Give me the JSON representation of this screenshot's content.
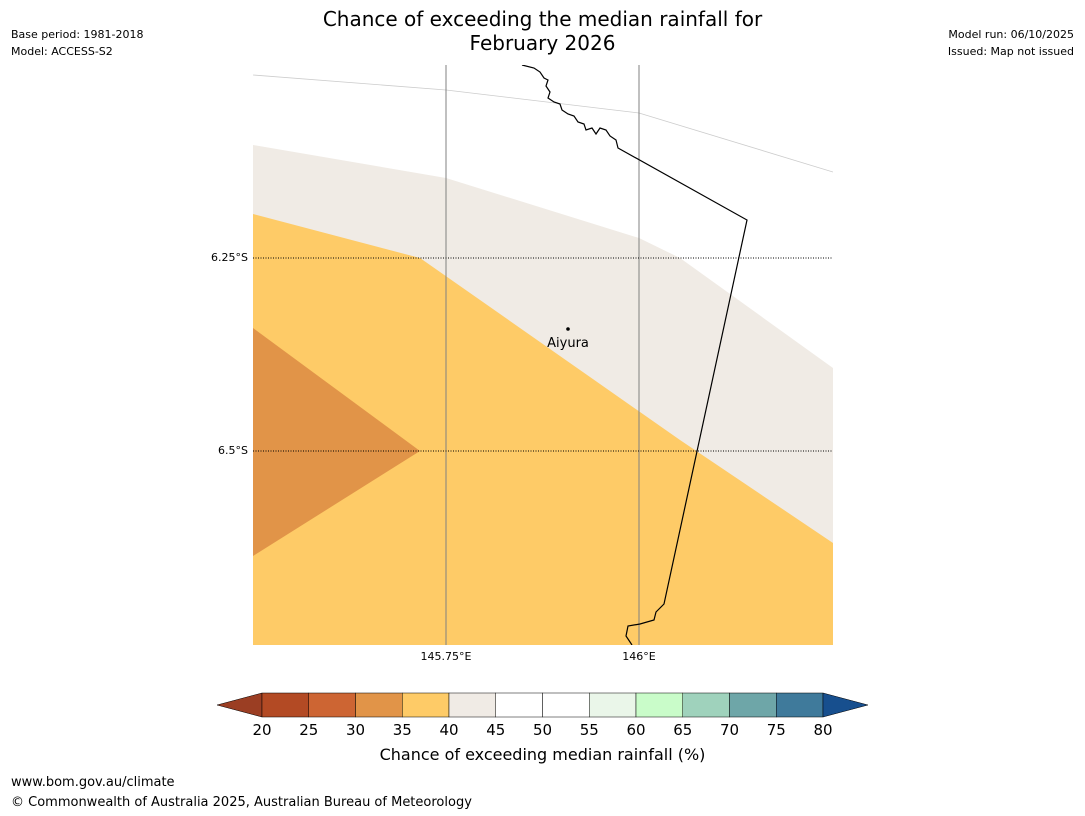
{
  "title": {
    "line1": "Chance of exceeding the median rainfall for",
    "line2": "February 2026"
  },
  "meta_left": {
    "base_period": "Base period: 1981-2018",
    "model": "Model: ACCESS-S2"
  },
  "meta_right": {
    "model_run": "Model run: 06/10/2025",
    "issued": "Issued: Map not issued"
  },
  "map": {
    "lat_labels": [
      "6.25°S",
      "6.5°S"
    ],
    "lon_labels": [
      "145.75°E",
      "146°E"
    ],
    "place": {
      "name": "Aiyura"
    }
  },
  "colorbar": {
    "ticks": [
      "20",
      "25",
      "30",
      "35",
      "40",
      "45",
      "50",
      "55",
      "60",
      "65",
      "70",
      "75",
      "80"
    ],
    "label": "Chance of exceeding median rainfall (%)",
    "colors": {
      "under": "#9b3e23",
      "c20_25": "#b34a24",
      "c25_30": "#cd6533",
      "c30_35": "#e19448",
      "c35_40": "#fecb67",
      "c40_45": "#f0ebe5",
      "c45_50": "#ffffff",
      "c50_55": "#ffffff",
      "c55_60": "#eaf6e9",
      "c60_65": "#c9fcc9",
      "c65_70": "#9fd2bc",
      "c70_75": "#6ea6a8",
      "c75_80": "#3f7a9b",
      "over": "#174f8e"
    }
  },
  "footer": {
    "url": "www.bom.gov.au/climate",
    "copyright": "© Commonwealth of Australia 2025, Australian Bureau of Meteorology"
  }
}
